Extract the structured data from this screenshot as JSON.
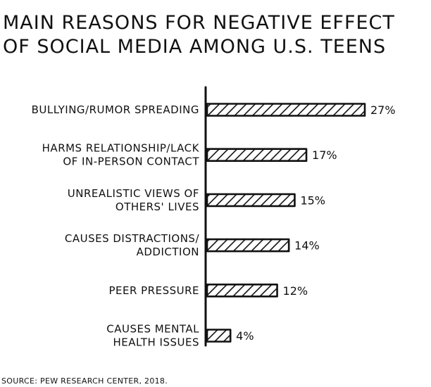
{
  "chart_data": {
    "type": "bar",
    "orientation": "horizontal",
    "title_lines": [
      "MAIN REASONS FOR NEGATIVE EFFECT",
      "OF SOCIAL MEDIA AMONG U.S. TEENS"
    ],
    "categories": [
      [
        "BULLYING/RUMOR SPREADING"
      ],
      [
        "HARMS RELATIONSHIP/LACK",
        "OF IN-PERSON CONTACT"
      ],
      [
        "UNREALISTIC VIEWS OF",
        "OTHERS' LIVES"
      ],
      [
        "CAUSES DISTRACTIONS/",
        "ADDICTION"
      ],
      [
        "PEER PRESSURE"
      ],
      [
        "CAUSES MENTAL",
        "HEALTH ISSUES"
      ]
    ],
    "values": [
      27,
      17,
      15,
      14,
      12,
      4
    ],
    "value_labels": [
      "27%",
      "17%",
      "15%",
      "14%",
      "12%",
      "4%"
    ],
    "xlim": [
      0,
      27
    ],
    "bar_fill": "hatched",
    "grid": false,
    "legend": "none"
  },
  "source": "SOURCE: PEW RESEARCH CENTER, 2018."
}
